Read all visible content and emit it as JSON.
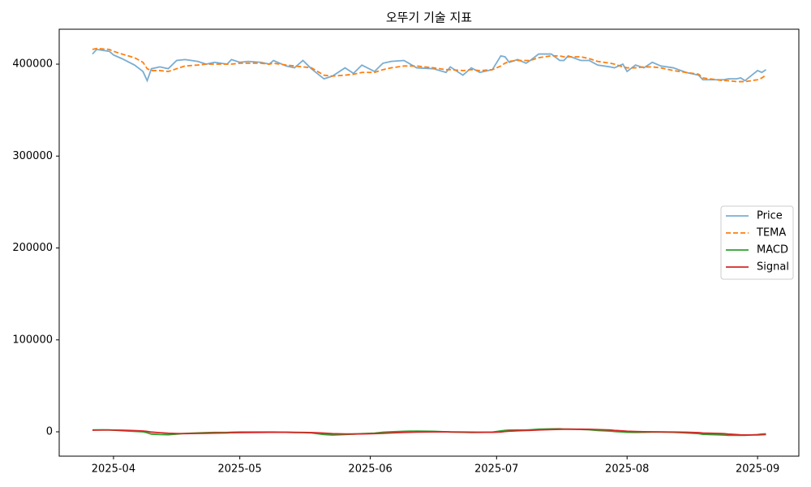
{
  "chart_data": {
    "type": "line",
    "title": "오뚜기 기술 지표",
    "x": [
      86,
      87,
      90,
      91,
      93,
      96,
      98,
      99,
      100,
      102,
      104,
      106,
      108,
      111,
      113,
      115,
      118,
      119,
      121,
      123,
      126,
      128,
      129,
      132,
      134,
      136,
      138,
      141,
      143,
      146,
      148,
      150,
      153,
      155,
      157,
      160,
      163,
      167,
      170,
      171,
      174,
      176,
      178,
      181,
      183,
      184,
      185,
      187,
      189,
      190,
      192,
      195,
      197,
      198,
      199,
      202,
      204,
      206,
      209,
      210,
      212,
      213,
      215,
      217,
      219,
      221,
      224,
      227,
      230,
      231,
      236,
      237,
      239,
      240,
      241,
      244,
      245,
      246
    ],
    "xlim": [
      78.1,
      253.8
    ],
    "xticks": [
      {
        "value": 91,
        "label": "2025-04"
      },
      {
        "value": 121,
        "label": "2025-05"
      },
      {
        "value": 152,
        "label": "2025-06"
      },
      {
        "value": 182,
        "label": "2025-07"
      },
      {
        "value": 213,
        "label": "2025-08"
      },
      {
        "value": 244,
        "label": "2025-09"
      }
    ],
    "ylim": [
      -26500,
      438000
    ],
    "yticks": [
      0,
      100000,
      200000,
      300000,
      400000
    ],
    "grid": false,
    "legend": "center right",
    "series": [
      {
        "name": "Price",
        "color": "#1f77b4",
        "alpha": 0.6,
        "linestyle": "solid",
        "values": [
          411000,
          416000,
          414000,
          410000,
          406000,
          399000,
          392000,
          382000,
          395000,
          397000,
          395000,
          404000,
          405000,
          403000,
          400000,
          402000,
          400000,
          405000,
          402000,
          403000,
          402000,
          400000,
          404000,
          398000,
          396000,
          404000,
          395000,
          384000,
          387000,
          396000,
          390000,
          399000,
          392000,
          401000,
          403000,
          404000,
          396000,
          395000,
          391000,
          397000,
          388000,
          396000,
          391000,
          394000,
          409000,
          408000,
          402000,
          405000,
          401000,
          404000,
          411000,
          411000,
          404000,
          404000,
          409000,
          404000,
          404000,
          399000,
          397000,
          396000,
          400000,
          392000,
          399000,
          396000,
          402000,
          398000,
          396000,
          391000,
          388000,
          383000,
          383000,
          384000,
          384000,
          385000,
          382000,
          393000,
          391000,
          394000
        ]
      },
      {
        "name": "TEMA",
        "color": "#ff7f0e",
        "alpha": 1,
        "linestyle": "dashed",
        "values": [
          416000,
          417000,
          416000,
          414000,
          411000,
          407000,
          402000,
          395000,
          393000,
          393000,
          392000,
          395000,
          398000,
          399000,
          400000,
          400000,
          400000,
          400000,
          401000,
          401000,
          401000,
          400000,
          401000,
          399000,
          398000,
          397000,
          396000,
          388000,
          387000,
          388000,
          389000,
          391000,
          391000,
          394000,
          396000,
          398000,
          398000,
          396000,
          394000,
          394000,
          393000,
          394000,
          393000,
          394000,
          398000,
          401000,
          403000,
          404000,
          404000,
          404000,
          407000,
          409000,
          409000,
          408000,
          408000,
          408000,
          406000,
          403000,
          401000,
          400000,
          397000,
          396000,
          396000,
          397000,
          397000,
          396000,
          393000,
          391000,
          389000,
          385000,
          382000,
          382000,
          381000,
          381000,
          381000,
          383000,
          385000,
          388000
        ]
      },
      {
        "name": "MACD",
        "color": "#2ca02c",
        "alpha": 1,
        "linestyle": "solid",
        "values": [
          2000,
          2100,
          2000,
          1800,
          1200,
          500,
          0,
          -1000,
          -2500,
          -3000,
          -3200,
          -2500,
          -1800,
          -1200,
          -900,
          -700,
          -700,
          -500,
          -300,
          -200,
          -200,
          -300,
          -300,
          -500,
          -800,
          -900,
          -1200,
          -3000,
          -3500,
          -3000,
          -2500,
          -2000,
          -1500,
          -500,
          0,
          500,
          800,
          500,
          0,
          -300,
          -500,
          -800,
          -600,
          -400,
          1000,
          1500,
          1800,
          2000,
          2000,
          2200,
          2800,
          3200,
          3300,
          3000,
          3000,
          2600,
          2200,
          1500,
          800,
          300,
          -200,
          -500,
          -600,
          -500,
          -300,
          -300,
          -500,
          -1200,
          -2000,
          -2800,
          -3500,
          -3800,
          -3800,
          -3800,
          -3800,
          -3000,
          -2500,
          -2200
        ]
      },
      {
        "name": "Signal",
        "color": "#d62728",
        "alpha": 1,
        "linestyle": "solid",
        "values": [
          1800,
          1900,
          2000,
          1900,
          1700,
          1300,
          900,
          400,
          -300,
          -1000,
          -1600,
          -1900,
          -2000,
          -1800,
          -1600,
          -1400,
          -1200,
          -1000,
          -900,
          -800,
          -600,
          -500,
          -500,
          -500,
          -600,
          -700,
          -800,
          -1500,
          -2000,
          -2300,
          -2400,
          -2300,
          -2000,
          -1600,
          -1200,
          -700,
          -300,
          -100,
          0,
          -100,
          -200,
          -400,
          -500,
          -500,
          -200,
          300,
          700,
          1100,
          1400,
          1600,
          2000,
          2400,
          2700,
          2800,
          2800,
          2800,
          2700,
          2400,
          2000,
          1500,
          1000,
          600,
          300,
          100,
          0,
          -100,
          -200,
          -500,
          -900,
          -1400,
          -2000,
          -2500,
          -3000,
          -3300,
          -3400,
          -3400,
          -3200,
          -3000
        ]
      }
    ]
  }
}
